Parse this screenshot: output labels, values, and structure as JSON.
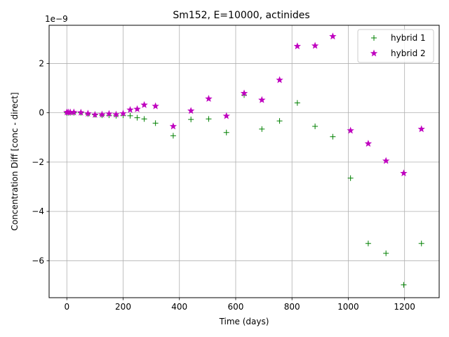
{
  "chart_data": {
    "type": "scatter",
    "title": "Sm152, E=10000, actinides",
    "xlabel": "Time (days)",
    "ylabel": "Concentration Diff [conc - direct]",
    "y_scale_label": "1e−9",
    "xlim": [
      -63,
      1323
    ],
    "ylim": [
      -7.5,
      3.55
    ],
    "x_ticks": [
      0,
      200,
      400,
      600,
      800,
      1000,
      1200
    ],
    "x_tick_labels": [
      "0",
      "200",
      "400",
      "600",
      "800",
      "1000",
      "1200"
    ],
    "y_ticks": [
      -6,
      -4,
      -2,
      0,
      2
    ],
    "y_tick_labels": [
      "−6",
      "−4",
      "−2",
      "0",
      "2"
    ],
    "grid": true,
    "legend_position": "top-right",
    "series": [
      {
        "name": "hybrid 1",
        "marker": "plus",
        "color": "#008000",
        "x": [
          0,
          5,
          12,
          25,
          50,
          75,
          100,
          125,
          150,
          175,
          200,
          225,
          250,
          275,
          315,
          378,
          441,
          504,
          567,
          630,
          693,
          756,
          819,
          882,
          945,
          1008,
          1071,
          1134,
          1197,
          1260
        ],
        "y": [
          0.0,
          0.0,
          0.0,
          0.0,
          0.0,
          -0.05,
          -0.08,
          -0.1,
          -0.1,
          -0.12,
          -0.1,
          -0.12,
          -0.2,
          -0.25,
          -0.42,
          -0.93,
          -0.27,
          -0.25,
          -0.8,
          0.72,
          -0.66,
          -0.33,
          0.4,
          -0.55,
          -0.97,
          -2.65,
          -5.3,
          -5.7,
          -6.98,
          -5.3
        ]
      },
      {
        "name": "hybrid 2",
        "marker": "star",
        "color": "#bf00bf",
        "x": [
          0,
          5,
          12,
          25,
          50,
          75,
          100,
          125,
          150,
          175,
          200,
          225,
          250,
          275,
          315,
          378,
          441,
          504,
          567,
          630,
          693,
          756,
          819,
          882,
          945,
          1008,
          1071,
          1134,
          1197,
          1260
        ],
        "y": [
          0.02,
          0.02,
          0.02,
          0.02,
          0.01,
          -0.03,
          -0.08,
          -0.07,
          -0.04,
          -0.07,
          -0.03,
          0.12,
          0.15,
          0.32,
          0.27,
          -0.55,
          0.08,
          0.57,
          -0.13,
          0.79,
          0.52,
          1.33,
          2.7,
          2.72,
          3.1,
          -0.72,
          -1.25,
          -1.95,
          -2.45,
          -0.66
        ]
      }
    ]
  }
}
